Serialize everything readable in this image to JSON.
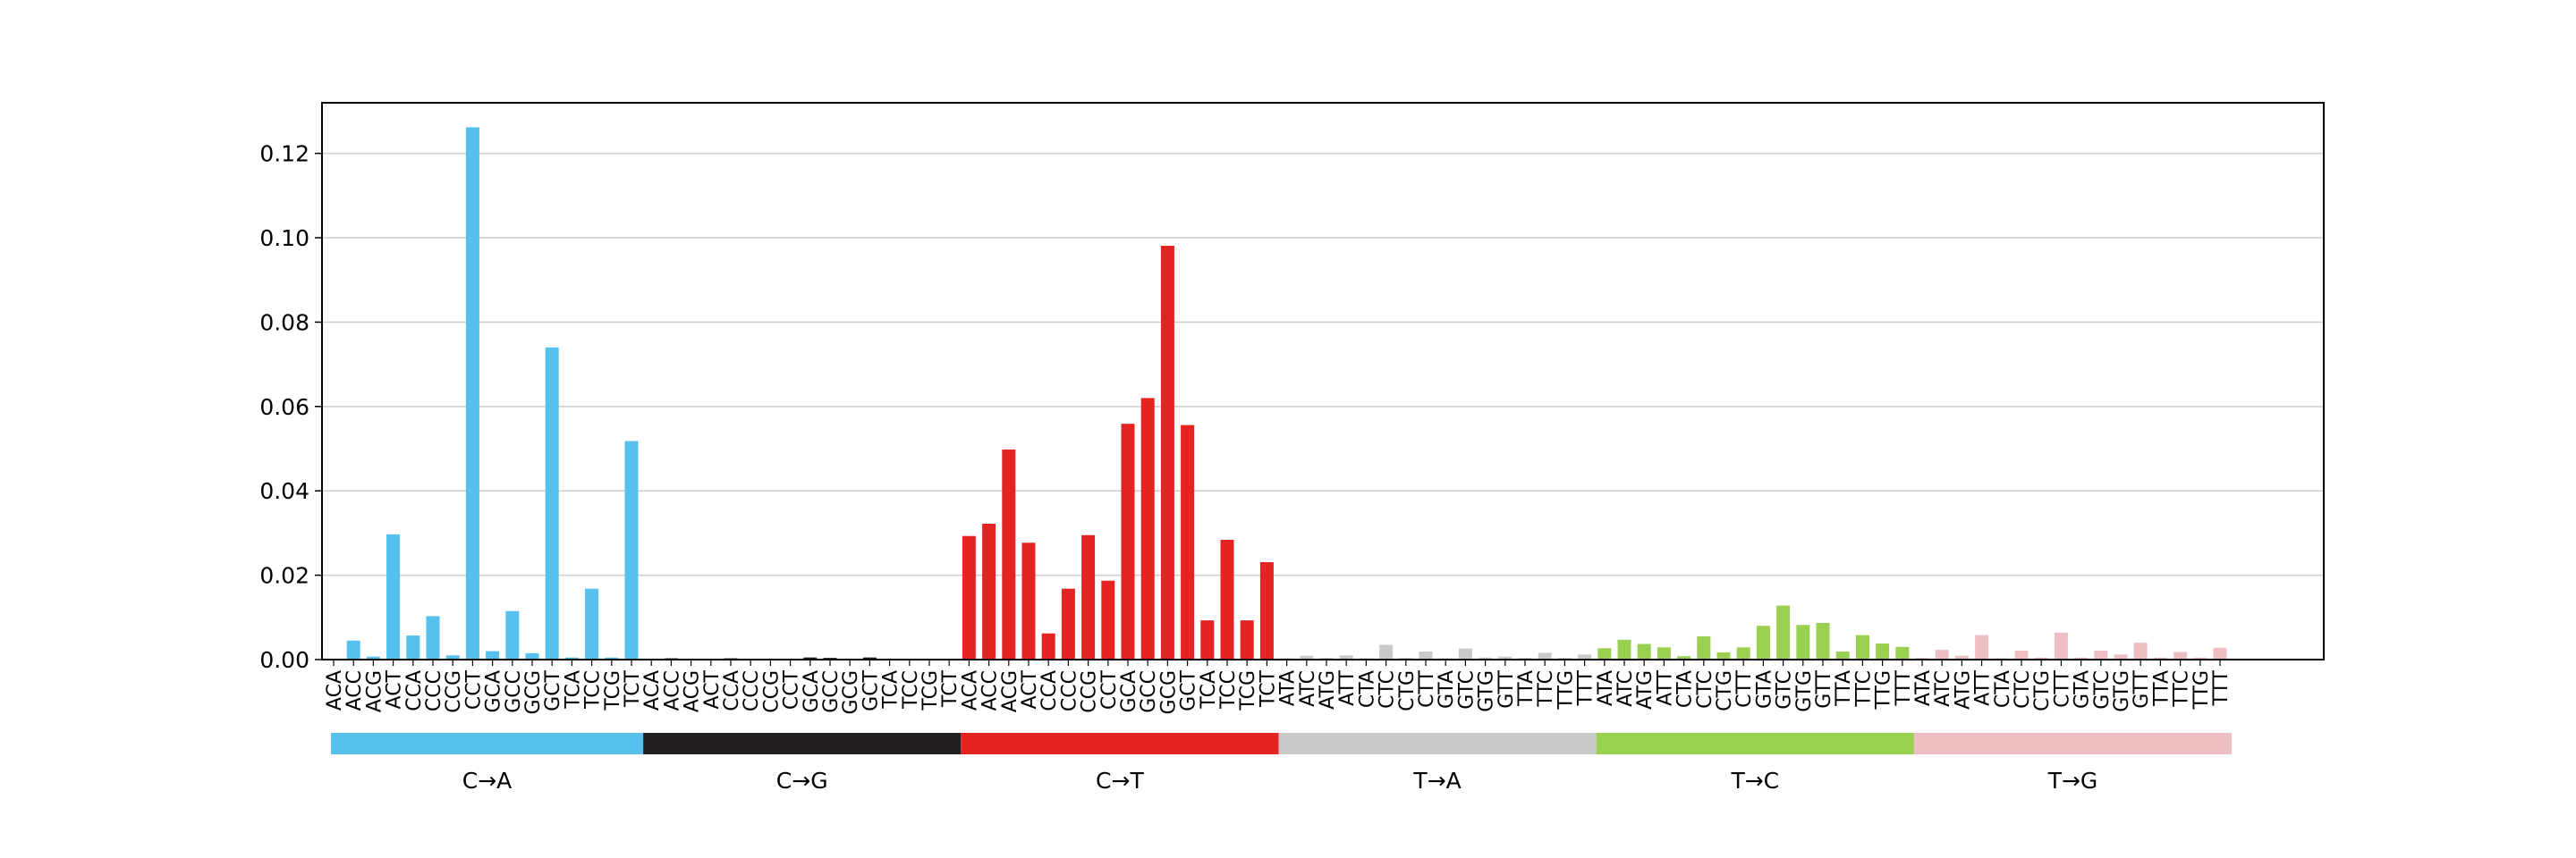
{
  "chart_data": {
    "type": "bar",
    "title": "",
    "xlabel": "",
    "ylabel": "",
    "ylim": [
      0,
      0.132
    ],
    "yticks": [
      "0.00",
      "0.02",
      "0.04",
      "0.06",
      "0.08",
      "0.10",
      "0.12"
    ],
    "grid": "horizontal",
    "legend": "none",
    "categories": [
      "ACA",
      "ACC",
      "ACG",
      "ACT",
      "CCA",
      "CCC",
      "CCG",
      "CCT",
      "GCA",
      "GCC",
      "GCG",
      "GCT",
      "TCA",
      "TCC",
      "TCG",
      "TCT",
      "ACA",
      "ACC",
      "ACG",
      "ACT",
      "CCA",
      "CCC",
      "CCG",
      "CCT",
      "GCA",
      "GCC",
      "GCG",
      "GCT",
      "TCA",
      "TCC",
      "TCG",
      "TCT",
      "ACA",
      "ACC",
      "ACG",
      "ACT",
      "CCA",
      "CCC",
      "CCG",
      "CCT",
      "GCA",
      "GCC",
      "GCG",
      "GCT",
      "TCA",
      "TCC",
      "TCG",
      "TCT",
      "ATA",
      "ATC",
      "ATG",
      "ATT",
      "CTA",
      "CTC",
      "CTG",
      "CTT",
      "GTA",
      "GTC",
      "GTG",
      "GTT",
      "TTA",
      "TTC",
      "TTG",
      "TTT",
      "ATA",
      "ATC",
      "ATG",
      "ATT",
      "CTA",
      "CTC",
      "CTG",
      "CTT",
      "GTA",
      "GTC",
      "GTG",
      "GTT",
      "TTA",
      "TTC",
      "TTG",
      "TTT",
      "ATA",
      "ATC",
      "ATG",
      "ATT",
      "CTA",
      "CTC",
      "CTG",
      "CTT",
      "GTA",
      "GTC",
      "GTG",
      "GTT",
      "TTA",
      "TTC",
      "TTG",
      "TTT"
    ],
    "groups": [
      {
        "name": "C→A",
        "color": "#56C1ED"
      },
      {
        "name": "C→G",
        "color": "#231F20"
      },
      {
        "name": "C→T",
        "color": "#E42323"
      },
      {
        "name": "T→A",
        "color": "#C9C9C9"
      },
      {
        "name": "T→C",
        "color": "#99D04F"
      },
      {
        "name": "T→G",
        "color": "#EDBFC2"
      }
    ],
    "values": [
      0.0,
      0.0045,
      0.0007,
      0.0297,
      0.0057,
      0.0103,
      0.001,
      0.1262,
      0.002,
      0.0115,
      0.0015,
      0.074,
      0.0005,
      0.0168,
      0.0005,
      0.0518,
      0.0,
      0.0003,
      0.0002,
      0.0001,
      0.0003,
      0.0002,
      0.0001,
      0.0002,
      0.0005,
      0.0004,
      0.0002,
      0.0005,
      0.0002,
      0.0001,
      0.0001,
      0.0001,
      0.0293,
      0.0322,
      0.0498,
      0.0277,
      0.0062,
      0.0168,
      0.0295,
      0.0187,
      0.0559,
      0.062,
      0.0981,
      0.0556,
      0.0093,
      0.0284,
      0.0093,
      0.0231,
      0.0003,
      0.0009,
      0.0004,
      0.001,
      0.0003,
      0.0035,
      0.0004,
      0.0019,
      0.0003,
      0.0026,
      0.0005,
      0.0007,
      0.0004,
      0.0016,
      0.0004,
      0.0012,
      0.0027,
      0.0047,
      0.0037,
      0.0029,
      0.0008,
      0.0055,
      0.0017,
      0.0029,
      0.008,
      0.0128,
      0.0082,
      0.0087,
      0.0019,
      0.0058,
      0.0038,
      0.003,
      0.0004,
      0.0023,
      0.0009,
      0.0058,
      0.0003,
      0.0021,
      0.0005,
      0.0064,
      0.0005,
      0.0021,
      0.0012,
      0.004,
      0.0005,
      0.0018,
      0.0005,
      0.0028
    ]
  }
}
